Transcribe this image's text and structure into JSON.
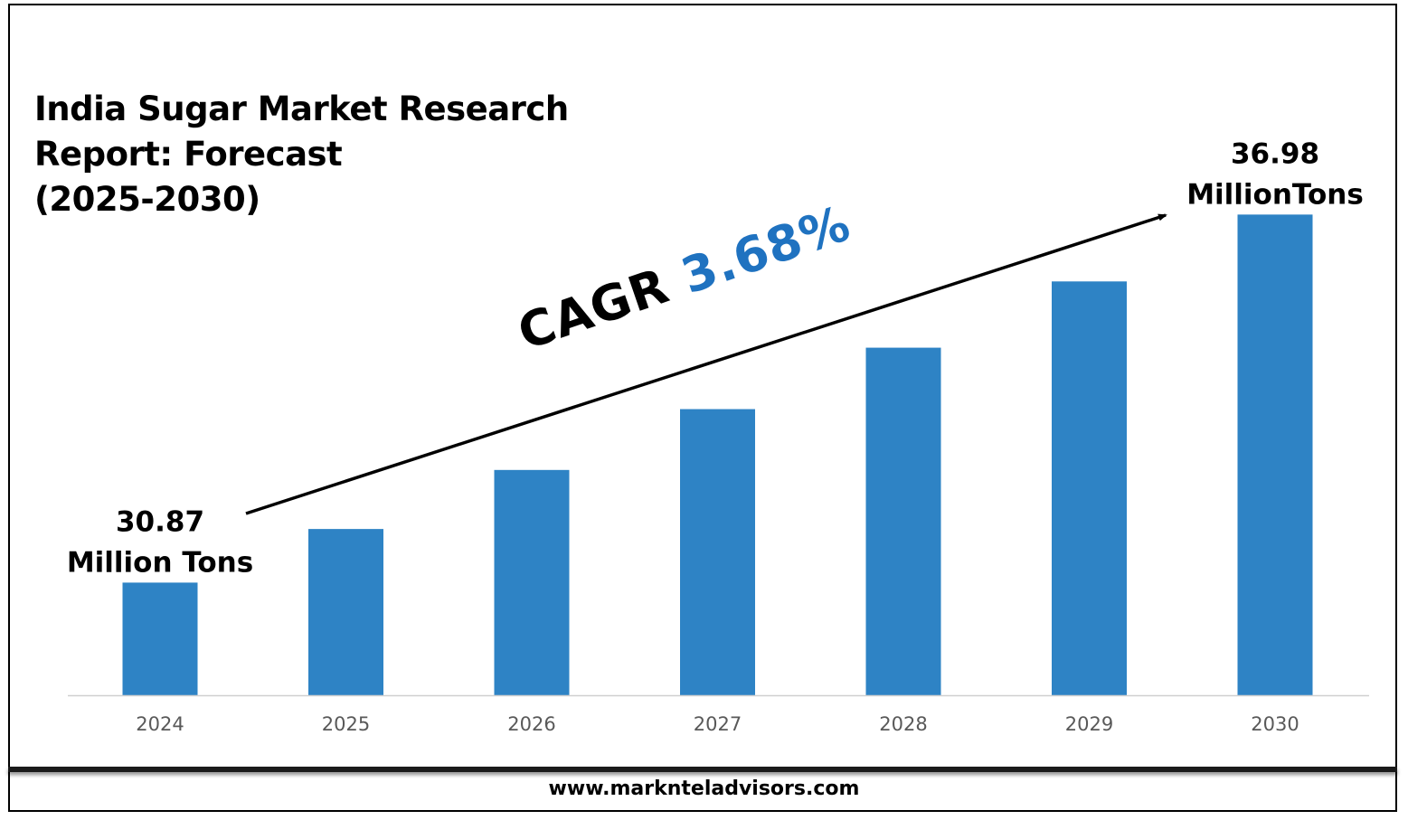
{
  "title": "India Sugar Market Research\nReport: Forecast\n(2025-2030)",
  "cagr": {
    "label": "CAGR",
    "value": "3.68%"
  },
  "website": "www.marknteladvisors.com",
  "colors": {
    "bar": "#2e83c5",
    "cagr_value": "#1f72c0",
    "axis": "#d0d0d0"
  },
  "chart_data": {
    "type": "bar",
    "categories": [
      "2024",
      "2025",
      "2026",
      "2027",
      "2028",
      "2029",
      "2030"
    ],
    "values": [
      30.87,
      31.76,
      32.74,
      33.75,
      34.77,
      35.87,
      36.98
    ],
    "annotations": [
      {
        "category": "2024",
        "lines": [
          "30.87",
          "Million Tons"
        ]
      },
      {
        "category": "2030",
        "lines": [
          "36.98",
          "MillionTons"
        ]
      }
    ],
    "ylim": [
      29.0,
      37.0
    ],
    "grid": false,
    "legend": "none"
  }
}
